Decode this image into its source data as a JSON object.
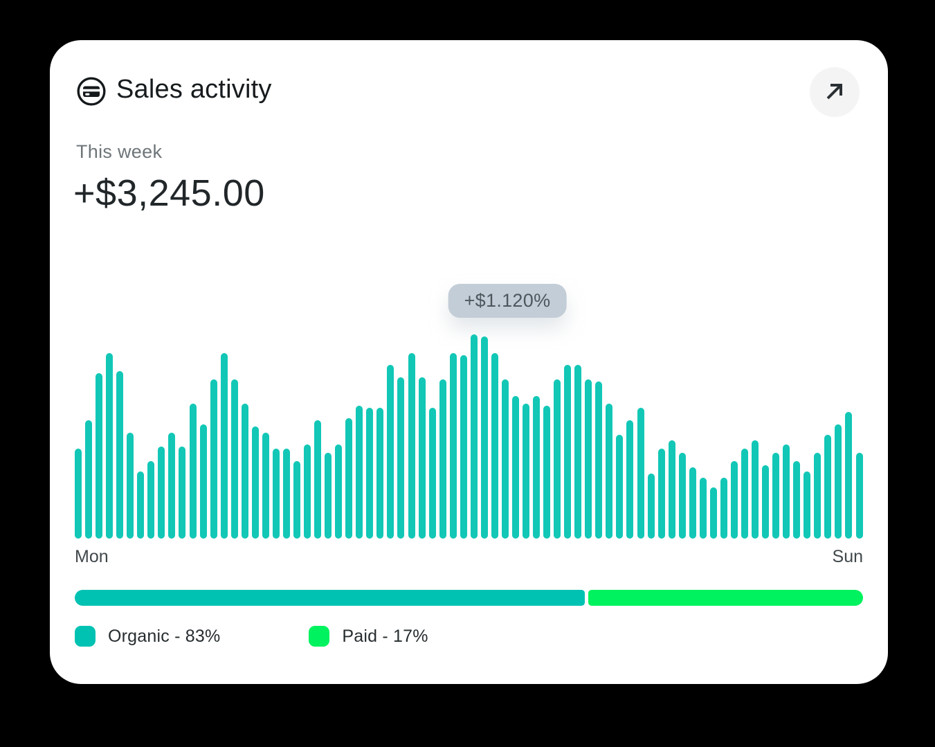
{
  "card": {
    "title": "Sales activity",
    "period_label": "This week",
    "amount": "+$3,245.00"
  },
  "chart_data": {
    "type": "bar",
    "title": "Sales activity",
    "subtitle": "This week",
    "total_label": "+$3,245.00",
    "tooltip": "+$1.120%",
    "x_start_label": "Mon",
    "x_end_label": "Sun",
    "grid": false,
    "legend_position": "bottom",
    "bar_color": "#12C7B6",
    "values_unit": "percent of max bar height",
    "values": [
      44,
      58,
      81,
      91,
      82,
      52,
      33,
      38,
      45,
      52,
      45,
      66,
      56,
      78,
      91,
      78,
      66,
      55,
      52,
      44,
      44,
      38,
      46,
      58,
      42,
      46,
      59,
      65,
      64,
      64,
      85,
      79,
      91,
      79,
      64,
      78,
      91,
      90,
      100,
      99,
      91,
      78,
      70,
      66,
      70,
      65,
      78,
      85,
      85,
      78,
      77,
      66,
      51,
      58,
      64,
      32,
      44,
      48,
      42,
      35,
      30,
      25,
      30,
      38,
      44,
      48,
      36,
      42,
      46,
      38,
      33,
      42,
      51,
      56,
      62,
      42
    ]
  },
  "breakdown_bar": {
    "organic_color": "#00C2B2",
    "paid_color": "#00F25F",
    "organic_share_pct": 83,
    "paid_share_pct": 17
  },
  "legend": {
    "items": [
      {
        "id": "organic",
        "label": "Organic - 83%",
        "color": "#00C2B2"
      },
      {
        "id": "paid",
        "label": "Paid - 17%",
        "color": "#00F25F"
      }
    ]
  },
  "colors": {
    "tooltip_bg": "#C3CDD7",
    "tooltip_text": "#4E575D",
    "card_bg": "#FFFFFF",
    "page_bg": "#000000"
  }
}
